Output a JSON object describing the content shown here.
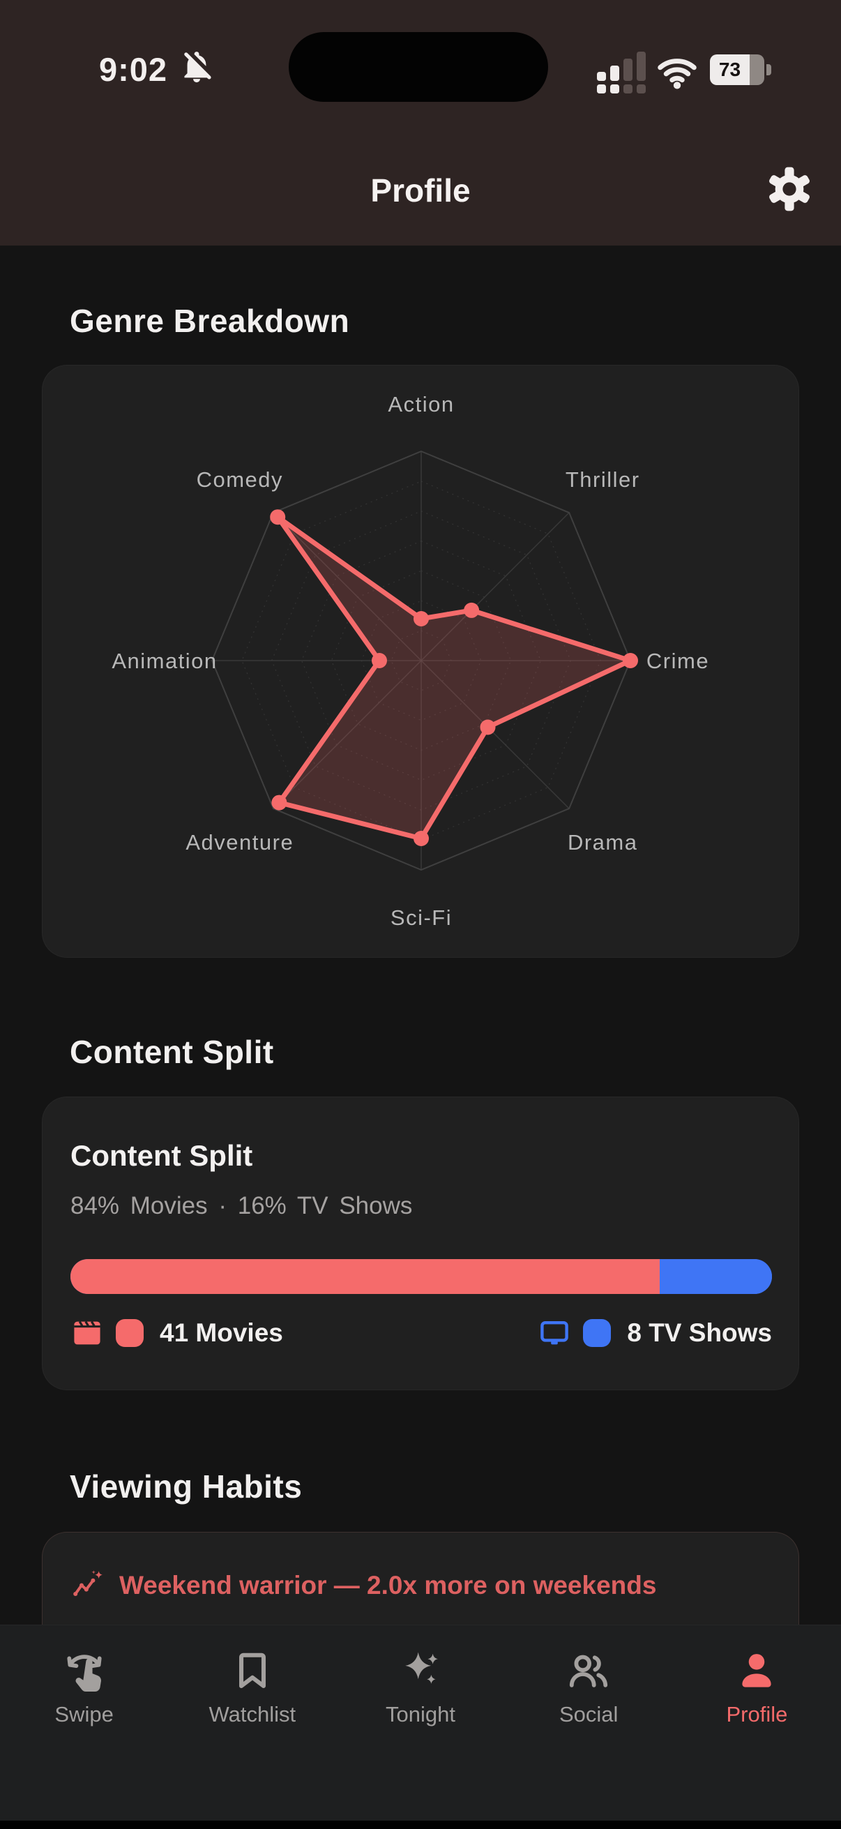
{
  "status_bar": {
    "time": "9:02",
    "battery_percent": "73",
    "icons": [
      "notifications-off-icon",
      "cell-signal-icon",
      "wifi-icon",
      "battery-icon"
    ]
  },
  "header": {
    "title": "Profile",
    "action_icon": "gear-icon"
  },
  "sections": {
    "genre": {
      "heading": "Genre Breakdown"
    },
    "content_split": {
      "heading": "Content Split",
      "card_title": "Content Split",
      "summary": "84% Movies · 16% TV Shows",
      "movies_pct": 84,
      "tv_pct": 16,
      "movies_label": "41 Movies",
      "tv_label": "8 TV Shows",
      "movies_icon": "clapperboard-icon",
      "tv_icon": "tv-icon"
    },
    "viewing_habits": {
      "heading": "Viewing Habits",
      "insight": "Weekend warrior — 2.0x more on weekends",
      "insight_icon": "trend-sparkle-icon"
    }
  },
  "chart_data": {
    "type": "radar",
    "title": "Genre Breakdown",
    "categories": [
      "Action",
      "Thriller",
      "Crime",
      "Drama",
      "Sci-Fi",
      "Adventure",
      "Animation",
      "Comedy"
    ],
    "values": [
      0.2,
      0.34,
      1.0,
      0.45,
      0.85,
      0.96,
      0.2,
      0.97
    ],
    "value_scale": "fraction of outer ring (no numeric tick labels shown)",
    "grid_levels": 7,
    "grid_shape": "octagon web, dotted inner rings",
    "legend_position": "none",
    "line_color": "#f56b6b",
    "fill_color": "rgba(245,107,107,0.2)",
    "dot_color": "#f56b6b",
    "label_color": "#b8b8b8",
    "grid_color": "#414141"
  },
  "tabs": [
    {
      "label": "Swipe",
      "icon": "swipe-hand-icon",
      "active": false
    },
    {
      "label": "Watchlist",
      "icon": "bookmark-icon",
      "active": false
    },
    {
      "label": "Tonight",
      "icon": "sparkles-icon",
      "active": false
    },
    {
      "label": "Social",
      "icon": "people-icon",
      "active": false
    },
    {
      "label": "Profile",
      "icon": "person-icon",
      "active": true
    }
  ],
  "colors": {
    "accent": "#f56b6b",
    "blue": "#3f75f5",
    "insight_text": "#dd6161",
    "header_bg": "#2e2423",
    "page_bg": "#141414",
    "card_bg": "#202020",
    "tabbar_bg": "#1e1f20"
  }
}
